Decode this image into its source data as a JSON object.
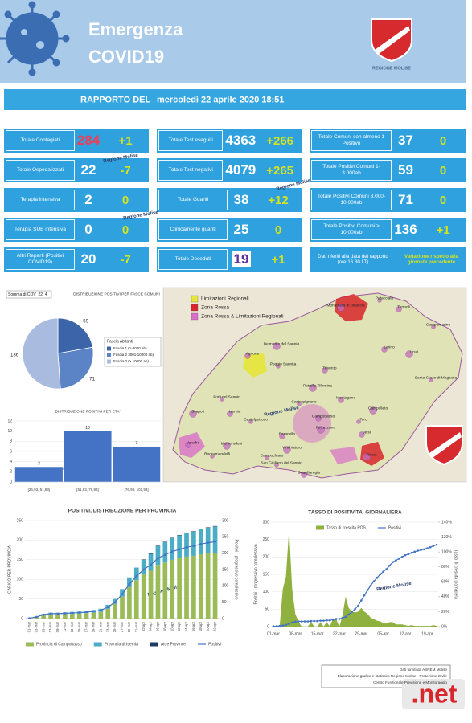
{
  "header": {
    "title_line1": "Emergenza",
    "title_line2": "COVID19",
    "logo_text": "REGIONE MOLISE"
  },
  "report": {
    "label": "RAPPORTO DEL",
    "date": "mercoledì 22 aprile 2020 18:51"
  },
  "watermark": "Regione Molise",
  "stats": {
    "columns": [
      [
        {
          "label": "Totale Contagiati",
          "value": 284,
          "delta": "+1",
          "value_color": "#e8415a"
        },
        {
          "label": "Totale Ospedalizzati",
          "value": 22,
          "delta": "-7"
        },
        {
          "label": "Terapia intensiva",
          "value": 2,
          "delta": "0"
        },
        {
          "label": "Terapia SUB intensiva",
          "value": 0,
          "delta": "0"
        },
        {
          "label": "Altri Reparti (Positivi COVID19)",
          "value": 20,
          "delta": "-7"
        }
      ],
      [
        {
          "label": "Totale Test eseguiti",
          "value": 4363,
          "delta": "+266"
        },
        {
          "label": "Totale Test negativi",
          "value": 4079,
          "delta": "+265"
        },
        {
          "label": "Totale Guariti",
          "value": 38,
          "delta": "+12"
        },
        {
          "label": "Clinicamente guariti",
          "value": 25,
          "delta": "0"
        },
        {
          "label": "Totale Deceduti",
          "value": 19,
          "delta": "+1",
          "value_color": "#5a2ca0",
          "value_bg": "#ffffff"
        }
      ],
      [
        {
          "label": "Totale Comuni con almeno 1 Positivo",
          "value": 37,
          "delta": "0"
        },
        {
          "label": "Totale Positivi Comuni 1-3.000ab",
          "value": 59,
          "delta": "0"
        },
        {
          "label": "Totale Positivi Comuni 3.000-10.000ab",
          "value": 71,
          "delta": "0"
        },
        {
          "label": "Totale Positivi Comuni > 10.000ab",
          "value": 136,
          "delta": "+1"
        }
      ]
    ],
    "note": {
      "label": "Dati riferiti alla data del rapporto (ore 16.30 LT)",
      "variation": "Variazione rispetto alla giornata precedente"
    }
  },
  "map": {
    "legend": [
      {
        "name": "Limitazioni Regionali",
        "color": "#e6e63a"
      },
      {
        "name": "Zona Rossa",
        "color": "#d9262c"
      },
      {
        "name": "Zona Rossa & Limitazioni Regionali",
        "color": "#d86fc8"
      }
    ],
    "towns": [
      "Petacciato",
      "Termoli",
      "Montenero di Bisaccia",
      "Campomarino",
      "Larino",
      "Ururi",
      "Santa Croce di Magliano",
      "Agnone",
      "Belmonte del Sannio",
      "Poggio Sannita",
      "Trivento",
      "Petrella Tifernina",
      "Castropignano",
      "Montagano",
      "Campolieto",
      "Forli del Sannio",
      "Isernia",
      "Scapoli",
      "Castelpetroso",
      "Venafro",
      "Monteroduni",
      "Roccamandolfi",
      "Baranello",
      "Vinchiaturo",
      "Campochiaro",
      "Campobasso",
      "Ferrazzano",
      "Toro",
      "Jelsi",
      "Riccia",
      "San Giuliano del Sannio",
      "Guardiaregia"
    ]
  },
  "chart_data": [
    {
      "type": "pie",
      "title": "DISTRIBUZIONE POSITIVI PER FASCE COMUNI",
      "label": "Somma di COV_22_4",
      "legend_title": "Fascia Abitanti",
      "categories": [
        "Fascia 1 (1-3000 ab)",
        "Fascia 2 3001-10000 ab)",
        "Fascia 3 (> 10000 ab)"
      ],
      "values": [
        59,
        71,
        136
      ],
      "colors": [
        "#3c64a9",
        "#5a84c6",
        "#a9bcdf"
      ]
    },
    {
      "type": "bar",
      "title": "DISTRIBUZIONE POSITIVI PER ETA'",
      "categories": [
        "[26,93, 51,93]",
        "[51,93, 76,93]",
        "[76,93, 101,93]"
      ],
      "values": [
        3,
        10,
        7
      ],
      "color": "#4472c4",
      "ylim": [
        0,
        12
      ],
      "yticks": [
        0,
        2,
        4,
        6,
        8,
        10,
        12
      ]
    },
    {
      "type": "bar",
      "title": "POSITIVI, DISTRIBUZIONE PER PROVINCIA",
      "y_label": "CARICO PER PROVINCIA",
      "y2_label": "Positivi - progressivo complessivo",
      "stacked": true,
      "categories": [
        "01-mar",
        "03-mar",
        "05-mar",
        "07-mar",
        "09-mar",
        "11-mar",
        "13-mar",
        "15-mar",
        "17-mar",
        "19-mar",
        "21-mar",
        "23-mar",
        "25-mar",
        "27-mar",
        "29-mar",
        "31-mar",
        "02-apr",
        "04-apr",
        "06-apr",
        "08-apr",
        "10-apr",
        "12-apr",
        "14-apr",
        "16-apr",
        "18-apr",
        "20-apr",
        "22-apr"
      ],
      "series": [
        {
          "name": "Provincia di Campobasso",
          "color": "#9bbb59",
          "values": [
            1,
            4,
            9,
            11,
            11,
            12,
            12,
            13,
            14,
            15,
            17,
            25,
            37,
            56,
            80,
            98,
            112,
            122,
            137,
            143,
            150,
            154,
            158,
            160,
            164,
            166,
            168
          ]
        },
        {
          "name": "Provincia di Isernia",
          "color": "#4bacc6",
          "values": [
            0,
            1,
            3,
            4,
            4,
            4,
            5,
            5,
            6,
            7,
            8,
            10,
            13,
            19,
            25,
            32,
            38,
            43,
            48,
            52,
            55,
            58,
            60,
            62,
            64,
            66,
            67
          ]
        },
        {
          "name": "Altre Province",
          "color": "#1f3864",
          "values": [
            0,
            0,
            0,
            0,
            0,
            0,
            0,
            0,
            0,
            0,
            0,
            0,
            0,
            0,
            0,
            0,
            1,
            1,
            1,
            1,
            1,
            1,
            1,
            1,
            1,
            1,
            1
          ]
        },
        {
          "name": "Positivi",
          "color": "#4472c4",
          "type": "line",
          "axis": "y2",
          "values": [
            1,
            5,
            12,
            15,
            15,
            16,
            17,
            18,
            20,
            22,
            25,
            35,
            50,
            75,
            105,
            130,
            150,
            165,
            185,
            195,
            205,
            212,
            218,
            222,
            228,
            232,
            235
          ]
        }
      ],
      "ylim": [
        0,
        250
      ],
      "yticks": [
        0,
        50,
        100,
        150,
        200,
        250
      ],
      "y2lim": [
        0,
        300
      ],
      "y2ticks": [
        0,
        50,
        100,
        150,
        200,
        250,
        300
      ]
    },
    {
      "type": "area",
      "title": "TASSO DI POSITIVITA' GIORNALIERA",
      "y_label": "Positivi - progressivo complessivo",
      "y2_label": "Tasso di crescita giornaliera",
      "categories": [
        "01-mar",
        null,
        null,
        null,
        null,
        null,
        null,
        "08-mar",
        null,
        null,
        null,
        null,
        null,
        null,
        "15-mar",
        null,
        null,
        null,
        null,
        null,
        null,
        "22-mar",
        null,
        null,
        null,
        null,
        null,
        null,
        "29-mar",
        null,
        null,
        null,
        null,
        null,
        null,
        "05-apr",
        null,
        null,
        null,
        null,
        null,
        null,
        "12-apr",
        null,
        null,
        null,
        null,
        null,
        null,
        "19-apr",
        null,
        null,
        null
      ],
      "series": [
        {
          "name": "Tasso di crescita POS",
          "color": "#8fb13f",
          "type": "area",
          "axis": "y2",
          "values": [
            0,
            0,
            0,
            50,
            67,
            130,
            50,
            17,
            7,
            0,
            0,
            0,
            7,
            0,
            0,
            6,
            0,
            6,
            0,
            11,
            10,
            0,
            14,
            40,
            25,
            20,
            19,
            20,
            25,
            20,
            17,
            12,
            10,
            8,
            7,
            5,
            4,
            6,
            6,
            3,
            3,
            3,
            2,
            1,
            2,
            1,
            1,
            1,
            1,
            1,
            1,
            2,
            1
          ]
        },
        {
          "name": "Positivi",
          "color": "#4472c4",
          "type": "line",
          "values": [
            1,
            1,
            2,
            3,
            5,
            8,
            12,
            14,
            15,
            15,
            15,
            15,
            16,
            16,
            16,
            17,
            17,
            18,
            18,
            20,
            22,
            22,
            25,
            28,
            35,
            42,
            50,
            60,
            75,
            90,
            105,
            118,
            130,
            140,
            150,
            158,
            165,
            175,
            185,
            190,
            195,
            200,
            205,
            208,
            212,
            215,
            218,
            220,
            222,
            225,
            228,
            232,
            235
          ]
        }
      ],
      "ylim": [
        0,
        300
      ],
      "yticks": [
        0,
        50,
        100,
        150,
        200,
        250,
        300
      ],
      "y2lim": [
        0,
        140
      ],
      "y2ticks": [
        {
          "value": 0,
          "label": "0%"
        },
        {
          "value": 20,
          "label": "20%"
        },
        {
          "value": 40,
          "label": "40%"
        },
        {
          "value": 60,
          "label": "60%"
        },
        {
          "value": 80,
          "label": "80%"
        },
        {
          "value": 100,
          "label": "100%"
        },
        {
          "value": 120,
          "label": "120%"
        },
        {
          "value": 140,
          "label": "140%"
        }
      ]
    }
  ],
  "footer": {
    "lines": [
      "Dati forniti da ASREM Molise",
      "Elaborazione grafica e statistica Regione Molise - Protezione Civile",
      "Centro Funzionale Previsione e Monitoraggio"
    ],
    "logo": ".net"
  }
}
